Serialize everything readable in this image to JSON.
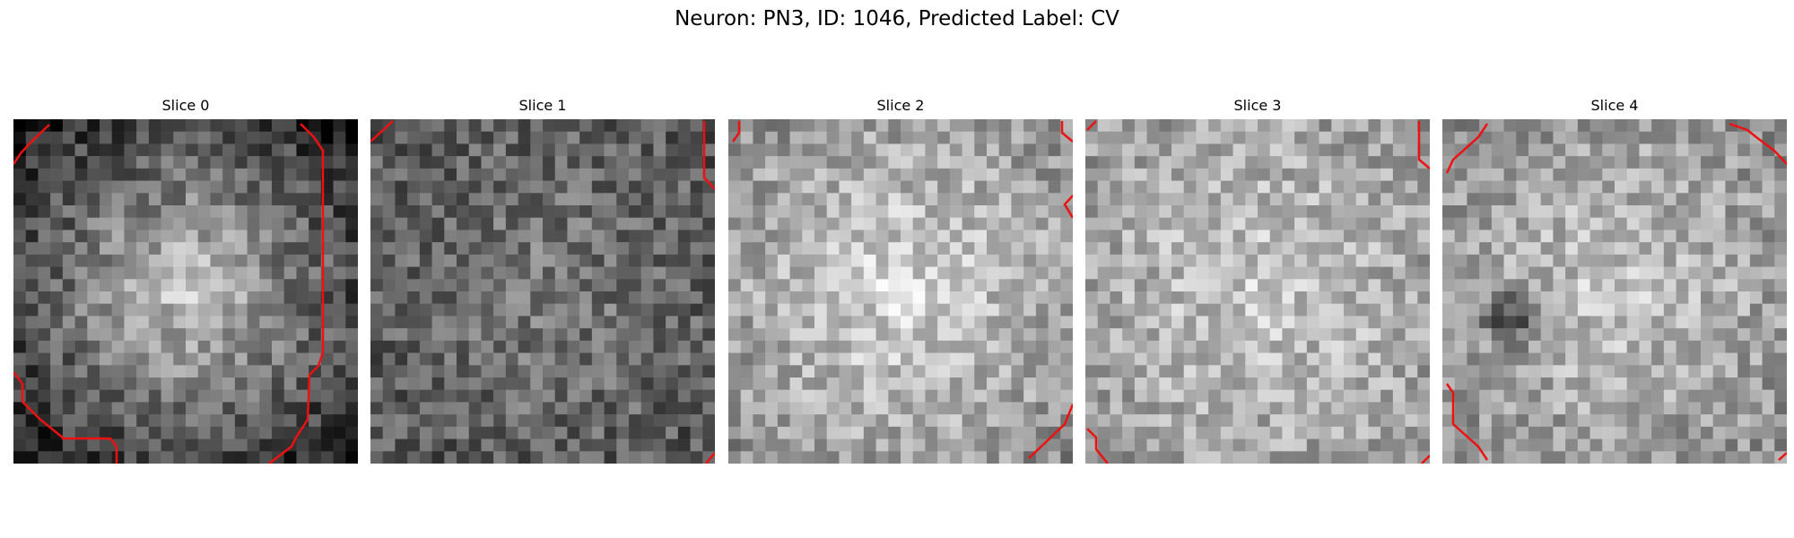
{
  "figure": {
    "title": "Neuron: PN3, ID: 1046, Predicted Label: CV"
  },
  "panels": [
    {
      "title": "Slice 0",
      "texture": "bright-blob-dark-corners",
      "seed": 11
    },
    {
      "title": "Slice 1",
      "texture": "mid-grey-noise",
      "seed": 23
    },
    {
      "title": "Slice 2",
      "texture": "bright-center",
      "seed": 37
    },
    {
      "title": "Slice 3",
      "texture": "bright-noise",
      "seed": 41
    },
    {
      "title": "Slice 4",
      "texture": "bright-with-dark-spot",
      "seed": 53
    }
  ],
  "contour_color": "#ee1111",
  "colormap": "gray"
}
